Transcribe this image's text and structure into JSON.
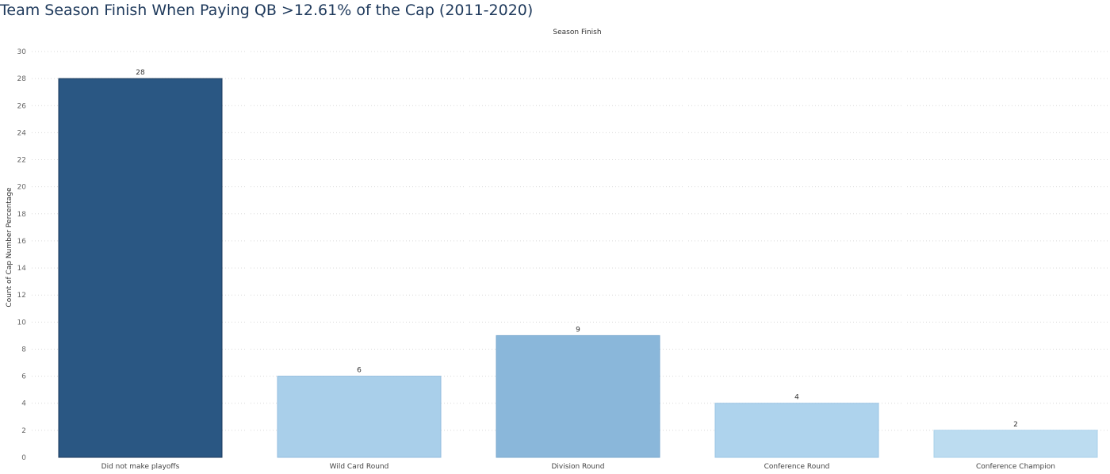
{
  "chart_data": {
    "type": "bar",
    "title": "Team Season Finish When Paying QB >12.61% of the Cap (2011-2020)",
    "subtitle": "Season Finish",
    "ylabel": "Count of Cap Number Percentage",
    "ylim": [
      0,
      30
    ],
    "yticks": [
      0,
      2,
      4,
      6,
      8,
      10,
      12,
      14,
      16,
      18,
      20,
      22,
      24,
      26,
      28,
      30
    ],
    "categories": [
      "Did not make playoffs",
      "Wild Card Round",
      "Division Round",
      "Conference Round",
      "Conference Champion"
    ],
    "values": [
      28,
      6,
      9,
      4,
      2
    ],
    "bar_colors": [
      "#2a5783",
      "#a9cfea",
      "#8ab7da",
      "#aed3ed",
      "#bcdcf0"
    ],
    "bar_stroke_colors": [
      "#1b3a5c",
      "#94bedf",
      "#7aa8cf",
      "#9ac4e4",
      "#a9d0ea"
    ],
    "grid": true
  }
}
